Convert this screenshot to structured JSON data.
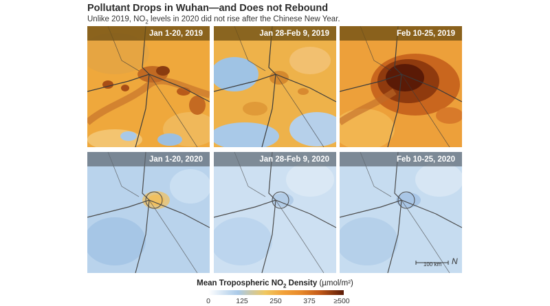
{
  "title": "Pollutant Drops in Wuhan—and Does not Rebound",
  "subtitle": {
    "pre": "Unlike 2019, NO",
    "sub": "2",
    "post": " levels in 2020 did not rise after the Chinese New Year."
  },
  "panels": [
    {
      "label": "Jan 1-20, 2019"
    },
    {
      "label": "Jan 28-Feb 9, 2019"
    },
    {
      "label": "Feb 10-25, 2019"
    },
    {
      "label": "Jan 1-20, 2020"
    },
    {
      "label": "Jan 28-Feb 9, 2020"
    },
    {
      "label": "Feb 10-25, 2020"
    }
  ],
  "scale_bar": {
    "label": "100 km"
  },
  "north_arrow": {
    "symbol": "N"
  },
  "legend": {
    "title_pre": "Mean Tropospheric NO",
    "title_sub": "2",
    "title_post": " Density",
    "units": "(µmol/m²)",
    "ticks": [
      "0",
      "125",
      "250",
      "375",
      "≥500"
    ],
    "colors": [
      "#ffffff",
      "#a9c9e8",
      "#f0c860",
      "#f2a23a",
      "#c45a18",
      "#5a1a06"
    ]
  }
}
